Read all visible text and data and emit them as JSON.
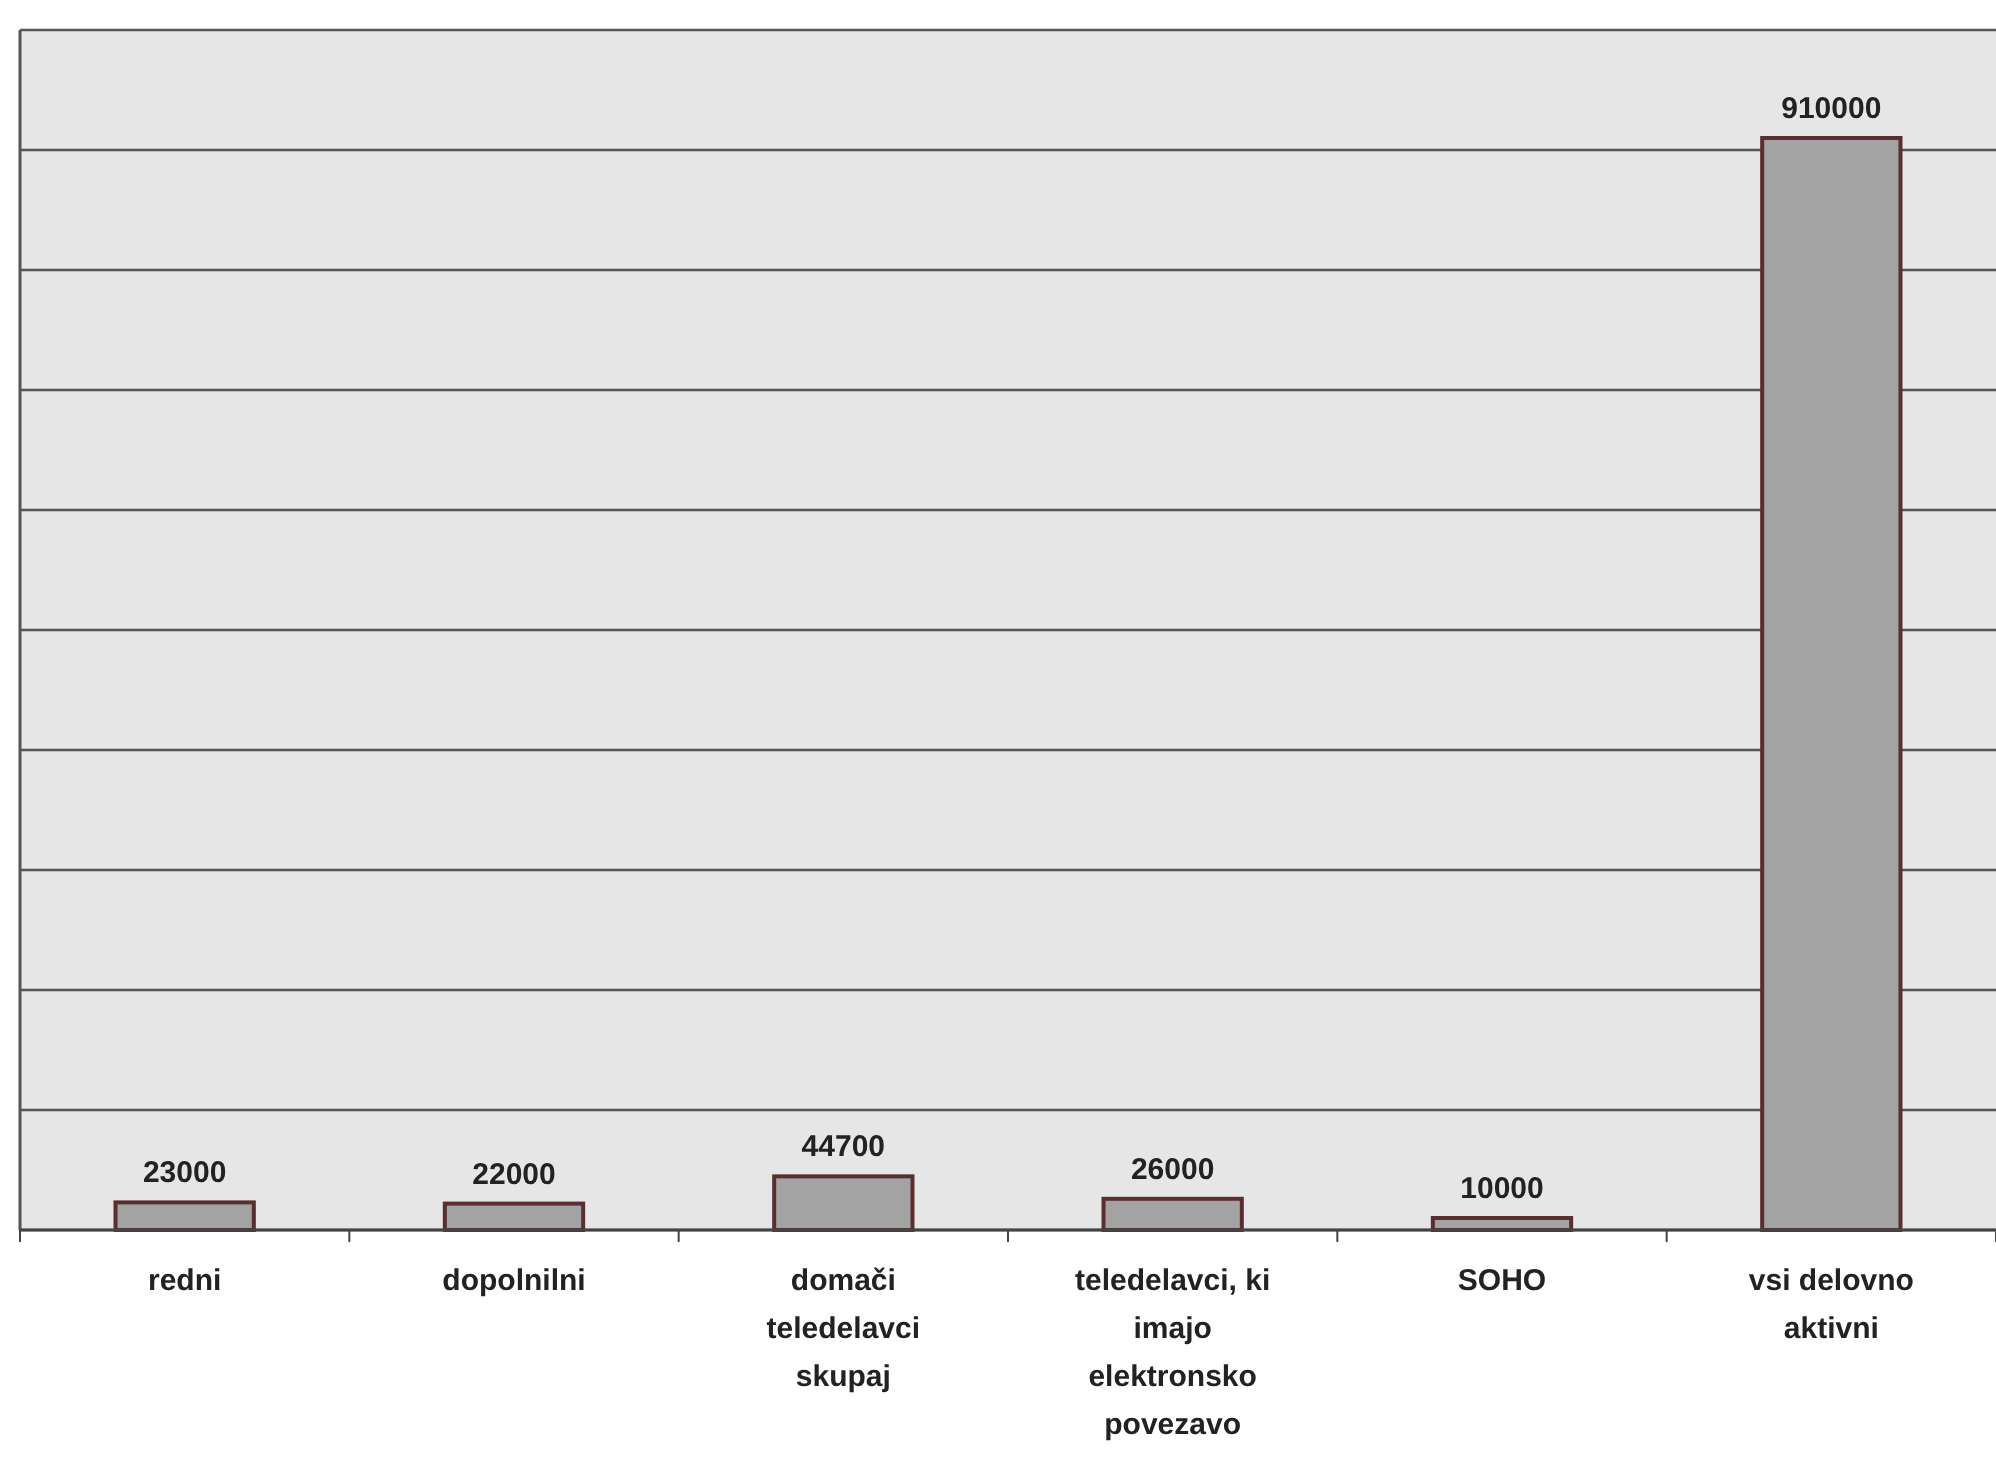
{
  "chart_data": {
    "type": "bar",
    "categories": [
      "redni",
      "dopolnilni",
      "domači teledelavci skupaj",
      "teledelavci, ki imajo elektronsko povezavo",
      "SOHO",
      "vsi delovno aktivni"
    ],
    "values": [
      23000,
      22000,
      44700,
      26000,
      10000,
      910000
    ],
    "color": "#a3a3a3",
    "ylim": [
      0,
      1000000
    ],
    "yticks": [
      {
        "value": 0,
        "label": null
      },
      {
        "value": 100000,
        "label": null
      },
      {
        "value": 200000,
        "label": null
      },
      {
        "value": 300000,
        "label": null
      },
      {
        "value": 400000,
        "label": null
      },
      {
        "value": 500000,
        "label": null
      },
      {
        "value": 600000,
        "label": null
      },
      {
        "value": 700000,
        "label": null
      },
      {
        "value": 800000,
        "label": null
      },
      {
        "value": 900000,
        "label": null
      },
      {
        "value": 1000000,
        "label": null
      }
    ],
    "grid": "y",
    "data_labels": true
  }
}
